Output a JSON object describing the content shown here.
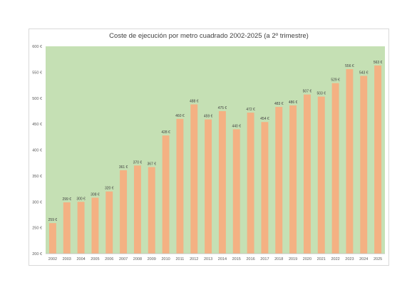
{
  "chart_data": {
    "type": "bar",
    "title": "Coste de ejecución por metro cuadrado 2002-2025 (a 2º trimestre)",
    "xlabel": "",
    "ylabel": "",
    "categories": [
      "2002",
      "2003",
      "2004",
      "2005",
      "2006",
      "2007",
      "2008",
      "2009",
      "2010",
      "2011",
      "2012",
      "2013",
      "2014",
      "2015",
      "2016",
      "2017",
      "2018",
      "2019",
      "2020",
      "2021",
      "2022",
      "2023",
      "2024",
      "2025"
    ],
    "values": [
      259,
      299,
      300,
      308,
      320,
      361,
      370,
      367,
      428,
      460,
      488,
      459,
      475,
      440,
      472,
      454,
      483,
      486,
      507,
      503,
      529,
      556,
      543,
      563
    ],
    "value_labels": [
      "259 €",
      "299 €",
      "300 €",
      "308 €",
      "320 €",
      "361 €",
      "370 €",
      "367 €",
      "428 €",
      "460 €",
      "488 €",
      "459 €",
      "475 €",
      "440 €",
      "472 €",
      "454 €",
      "483 €",
      "486 €",
      "507 €",
      "503 €",
      "529 €",
      "556 €",
      "543 €",
      "563 €"
    ],
    "ylim": [
      200,
      600
    ],
    "y_ticks": [
      200,
      250,
      300,
      350,
      400,
      450,
      500,
      550,
      600
    ],
    "y_tick_labels": [
      "200 €",
      "250 €",
      "300 €",
      "350 €",
      "400 €",
      "450 €",
      "500 €",
      "550 €",
      "600 €"
    ],
    "grid": false,
    "legend": "none",
    "colors": {
      "bar": "#f4b183",
      "plot_background": "#c5e0b4",
      "text": "#404040",
      "axis": "#bfbfbf"
    }
  }
}
